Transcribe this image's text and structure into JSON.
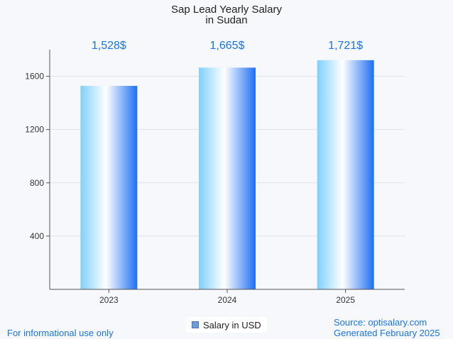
{
  "chart_data": {
    "type": "bar",
    "title": "Sap Lead Yearly Salary",
    "subtitle": "in Sudan",
    "categories": [
      "2023",
      "2024",
      "2025"
    ],
    "series": [
      {
        "name": "Salary in USD",
        "values": [
          1528,
          1665,
          1721
        ]
      }
    ],
    "data_labels": [
      "1,528$",
      "1,665$",
      "1,721$"
    ],
    "y_ticks": [
      "400",
      "800",
      "1200",
      "1600"
    ],
    "y_tick_values": [
      400,
      800,
      1200,
      1600
    ],
    "ylim": [
      0,
      1800
    ],
    "grid": true,
    "legend_position": "bottom-center",
    "colors": {
      "bar_light": "#7fd0ff",
      "bar_white": "#ffffff",
      "bar_dark": "#1e6ff2",
      "label": "#1a73e8",
      "grid": "#e2e2e2",
      "axis": "#555555"
    }
  },
  "footer": {
    "left_note": "For informational use only",
    "source": "Source: optisalary.com",
    "generated": "Generated February 2025"
  }
}
